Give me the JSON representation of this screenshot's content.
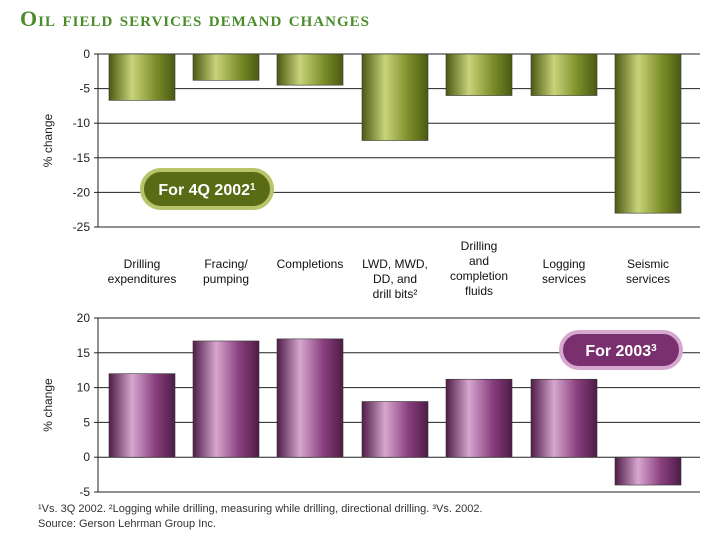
{
  "title": "Oil field services demand changes",
  "colors": {
    "top_light": "#c9d37a",
    "top_mid": "#7d8f2a",
    "top_dark": "#4a5a12",
    "bottom_light": "#d7a7cf",
    "bottom_mid": "#8a3f7f",
    "bottom_dark": "#4e1c47",
    "badge_top_fill": "#5a6b16",
    "badge_top_border": "#b9c46a",
    "badge_bottom_fill": "#7a2f6f",
    "badge_bottom_border": "#d6a8cf"
  },
  "footnotes": {
    "line1": "¹Vs. 3Q 2002. ²Logging while drilling, measuring while drilling, directional drilling. ³Vs. 2002.",
    "source": "Source: Gerson Lehrman Group Inc."
  },
  "chart_data": [
    {
      "type": "bar",
      "title": "For 4Q 2002",
      "title_sup": "1",
      "ylabel": "% change",
      "ylim": [
        -25,
        0
      ],
      "yticks": [
        "0",
        "-5",
        "-10",
        "-15",
        "-20",
        "-25"
      ],
      "ytick_values": [
        0,
        -5,
        -10,
        -15,
        -20,
        -25
      ],
      "grid": true,
      "categories": [
        [
          "Drilling",
          "expenditures"
        ],
        [
          "Fracing/",
          "pumping"
        ],
        [
          "Completions"
        ],
        [
          "LWD, MWD,",
          "DD, and",
          "drill bits²"
        ],
        [
          "Drilling",
          "and",
          "completion",
          "fluids"
        ],
        [
          "Logging",
          "services"
        ],
        [
          "Seismic",
          "services"
        ]
      ],
      "values": [
        -6.7,
        -3.8,
        -4.5,
        -12.5,
        -6,
        -6,
        -23
      ]
    },
    {
      "type": "bar",
      "title": "For 2003",
      "title_sup": "3",
      "ylabel": "% change",
      "ylim": [
        -5,
        20
      ],
      "yticks": [
        "20",
        "15",
        "10",
        "5",
        "0",
        "-5"
      ],
      "ytick_values": [
        20,
        15,
        10,
        5,
        0,
        -5
      ],
      "grid": true,
      "values": [
        12,
        16.7,
        17,
        8,
        11.2,
        11.2,
        -4
      ]
    }
  ]
}
